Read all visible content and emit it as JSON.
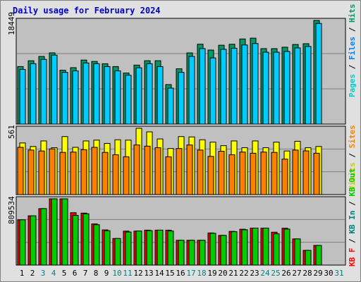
{
  "title": "Daily usage for February 2024",
  "colors": {
    "panel_bg": "#c0c0c0",
    "hits": "#009966",
    "files": "#00ccff",
    "pages": "#00cccc",
    "visits": "#ffff00",
    "sites": "#ff8000",
    "kbf": "#ff0000",
    "kbin": "#008080",
    "kbout": "#00cc00",
    "weekday_label": "#000000",
    "weekend_label": "#008080"
  },
  "panels": {
    "top_max_label": "18449",
    "mid_max_label": "561",
    "bottom_max_label": "809534",
    "top_legend": [
      {
        "text": "Pages",
        "color": "#00cccc"
      },
      {
        "text": " / ",
        "color": "#000000"
      },
      {
        "text": "Files",
        "color": "#0080ff"
      },
      {
        "text": " / ",
        "color": "#000000"
      },
      {
        "text": "Hits",
        "color": "#009966"
      }
    ],
    "mid_legend": [
      {
        "text": "Visits",
        "color": "#cccc00"
      },
      {
        "text": " / ",
        "color": "#000000"
      },
      {
        "text": "Sites",
        "color": "#ff8000"
      }
    ],
    "bottom_legend": [
      {
        "text": "KB F",
        "color": "#ff0000"
      },
      {
        "text": " / ",
        "color": "#000000"
      },
      {
        "text": "KB In",
        "color": "#008080"
      },
      {
        "text": " / ",
        "color": "#000000"
      },
      {
        "text": "KB Out",
        "color": "#00cc00"
      }
    ]
  },
  "chart_data": [
    {
      "type": "bar",
      "title": "Daily usage for February 2024",
      "categories": [
        "1",
        "2",
        "3",
        "4",
        "5",
        "6",
        "7",
        "8",
        "9",
        "10",
        "11",
        "12",
        "13",
        "14",
        "15",
        "16",
        "17",
        "18",
        "19",
        "20",
        "21",
        "22",
        "23",
        "24",
        "25",
        "26",
        "27",
        "28",
        "29",
        "30",
        "31"
      ],
      "weekend_days": [
        3,
        4,
        10,
        11,
        17,
        18,
        24,
        25,
        31
      ],
      "ylim": [
        0,
        18449
      ],
      "ylabel": "Pages / Files / Hits",
      "series": [
        {
          "name": "Hits",
          "values": [
            10240,
            11270,
            12040,
            12680,
            9600,
            10040,
            11400,
            11150,
            10740,
            10240,
            9090,
            10500,
            11280,
            11280,
            7030,
            9850,
            12670,
            14220,
            13180,
            14040,
            14210,
            15150,
            15300,
            13430,
            13430,
            13690,
            14170,
            14310,
            18449,
            0,
            0
          ]
        },
        {
          "name": "Files",
          "values": [
            9730,
            10750,
            11520,
            12280,
            9210,
            9470,
            10880,
            10750,
            10240,
            9470,
            8700,
            10020,
            10750,
            10240,
            6400,
            9210,
            12040,
            13440,
            11780,
            13310,
            13500,
            14080,
            14340,
            12800,
            12800,
            12930,
            13560,
            13820,
            17920,
            0,
            0
          ]
        },
        {
          "name": "Pages",
          "values": [
            9730,
            10750,
            11520,
            12280,
            9210,
            9470,
            10880,
            10750,
            10240,
            9470,
            8700,
            10020,
            10750,
            10240,
            6400,
            9210,
            12040,
            13440,
            11780,
            13310,
            13500,
            14080,
            14340,
            12800,
            12800,
            12930,
            13560,
            13820,
            17920,
            0,
            0
          ]
        }
      ]
    },
    {
      "type": "bar",
      "categories": [
        "1",
        "2",
        "3",
        "4",
        "5",
        "6",
        "7",
        "8",
        "9",
        "10",
        "11",
        "12",
        "13",
        "14",
        "15",
        "16",
        "17",
        "18",
        "19",
        "20",
        "21",
        "22",
        "23",
        "24",
        "25",
        "26",
        "27",
        "28",
        "29",
        "30",
        "31"
      ],
      "ylim": [
        0,
        561
      ],
      "ylabel": "Visits / Sites",
      "series": [
        {
          "name": "Visits",
          "values": [
            437,
            407,
            454,
            397,
            491,
            400,
            454,
            461,
            433,
            464,
            461,
            561,
            531,
            471,
            390,
            491,
            488,
            464,
            444,
            414,
            454,
            397,
            454,
            397,
            444,
            369,
            451,
            397,
            407,
            0,
            0
          ]
        },
        {
          "name": "Sites",
          "values": [
            400,
            377,
            369,
            387,
            357,
            360,
            380,
            400,
            357,
            337,
            320,
            420,
            410,
            397,
            320,
            390,
            420,
            377,
            323,
            367,
            337,
            360,
            350,
            360,
            357,
            300,
            377,
            370,
            350,
            0,
            0
          ]
        }
      ]
    },
    {
      "type": "bar",
      "categories": [
        "1",
        "2",
        "3",
        "4",
        "5",
        "6",
        "7",
        "8",
        "9",
        "10",
        "11",
        "12",
        "13",
        "14",
        "15",
        "16",
        "17",
        "18",
        "19",
        "20",
        "21",
        "22",
        "23",
        "24",
        "25",
        "26",
        "27",
        "28",
        "29",
        "30",
        "31"
      ],
      "ylim": [
        0,
        809534
      ],
      "ylabel": "KB F / KB In / KB Out",
      "series": [
        {
          "name": "KB F",
          "values": [
            553000,
            602000,
            690000,
            809534,
            809534,
            640000,
            635000,
            503000,
            430000,
            325000,
            415000,
            415000,
            427000,
            427000,
            427000,
            303000,
            303000,
            303000,
            393000,
            363000,
            412000,
            438000,
            452000,
            452000,
            402000,
            450000,
            320000,
            180000,
            240000,
            0,
            0
          ]
        },
        {
          "name": "KB Out",
          "values": [
            553000,
            602000,
            690000,
            809534,
            809534,
            607000,
            627000,
            493000,
            420000,
            325000,
            404000,
            416000,
            421000,
            427000,
            416000,
            303000,
            303000,
            303000,
            388000,
            363000,
            408000,
            432000,
            452000,
            452000,
            382000,
            440000,
            320000,
            180000,
            240000,
            0,
            0
          ]
        }
      ]
    }
  ]
}
